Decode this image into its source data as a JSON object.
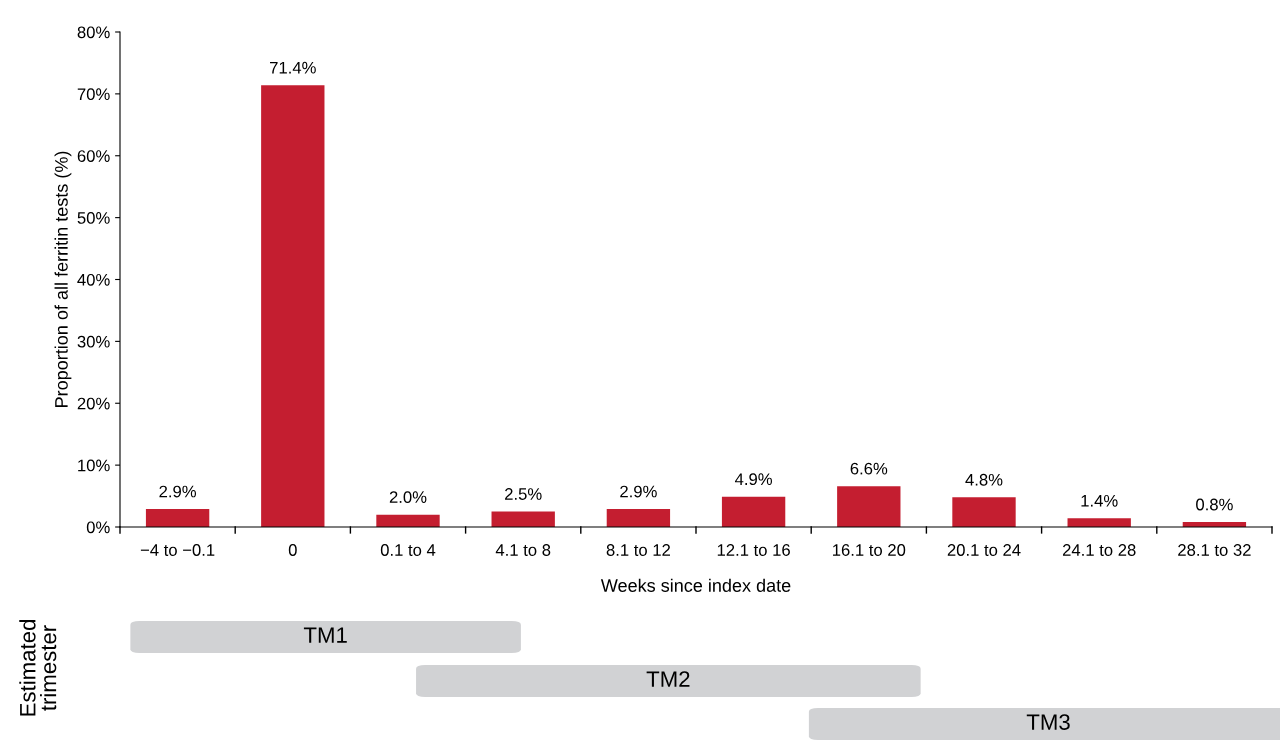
{
  "chart_data": {
    "type": "bar",
    "xlabel": "Weeks since index date",
    "ylabel": "Proportion of all ferritin tests (%)",
    "categories": [
      "−4 to −0.1",
      "0",
      "0.1 to 4",
      "4.1 to 8",
      "8.1 to 12",
      "12.1 to 16",
      "16.1 to 20",
      "20.1 to 24",
      "24.1 to 28",
      "28.1 to 32"
    ],
    "values": [
      2.9,
      71.4,
      2.0,
      2.5,
      2.9,
      4.9,
      6.6,
      4.8,
      1.4,
      0.8
    ],
    "value_labels": [
      "2.9%",
      "71.4%",
      "2.0%",
      "2.5%",
      "2.9%",
      "4.9%",
      "6.6%",
      "4.8%",
      "1.4%",
      "0.8%"
    ],
    "color": "#c41e30",
    "ylim": [
      0,
      80
    ],
    "yticks": [
      {
        "value": 0,
        "label": "0%"
      },
      {
        "value": 10,
        "label": "10%"
      },
      {
        "value": 20,
        "label": "20%"
      },
      {
        "value": 30,
        "label": "30%"
      },
      {
        "value": 40,
        "label": "40%"
      },
      {
        "value": 50,
        "label": "50%"
      },
      {
        "value": 60,
        "label": "60%"
      },
      {
        "value": 70,
        "label": "70%"
      },
      {
        "value": 80,
        "label": "80%"
      }
    ],
    "grid": false,
    "annotations": [
      "Estimated\ntrimester",
      "TM1",
      "TM2",
      "TM3"
    ]
  }
}
